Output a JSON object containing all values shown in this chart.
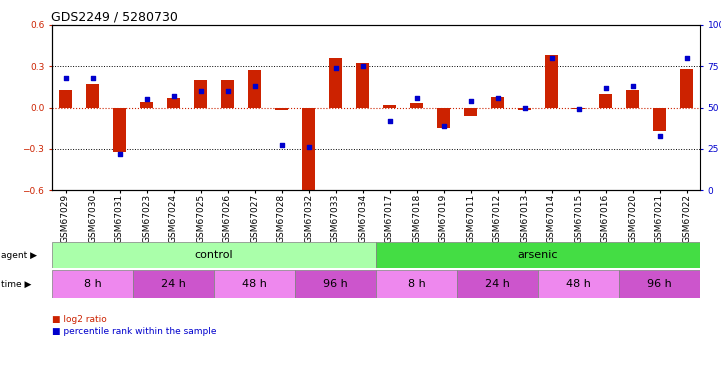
{
  "title": "GDS2249 / 5280730",
  "samples": [
    "GSM67029",
    "GSM67030",
    "GSM67031",
    "GSM67023",
    "GSM67024",
    "GSM67025",
    "GSM67026",
    "GSM67027",
    "GSM67028",
    "GSM67032",
    "GSM67033",
    "GSM67034",
    "GSM67017",
    "GSM67018",
    "GSM67019",
    "GSM67011",
    "GSM67012",
    "GSM67013",
    "GSM67014",
    "GSM67015",
    "GSM67016",
    "GSM67020",
    "GSM67021",
    "GSM67022"
  ],
  "log2ratio": [
    0.13,
    0.17,
    -0.32,
    0.04,
    0.07,
    0.2,
    0.2,
    0.27,
    -0.02,
    -0.6,
    0.36,
    0.32,
    0.02,
    0.03,
    -0.15,
    -0.06,
    0.08,
    -0.02,
    0.38,
    -0.01,
    0.1,
    0.13,
    -0.17,
    0.28
  ],
  "percentile": [
    68,
    68,
    22,
    55,
    57,
    60,
    60,
    63,
    27,
    26,
    74,
    75,
    42,
    56,
    39,
    54,
    56,
    50,
    80,
    49,
    62,
    63,
    33,
    80
  ],
  "agent_groups": [
    {
      "label": "control",
      "start": 0,
      "end": 11,
      "color": "#aaffaa"
    },
    {
      "label": "arsenic",
      "start": 12,
      "end": 23,
      "color": "#44dd44"
    }
  ],
  "time_groups": [
    {
      "label": "8 h",
      "start": 0,
      "end": 2,
      "color": "#ee88ee"
    },
    {
      "label": "24 h",
      "start": 3,
      "end": 5,
      "color": "#cc55cc"
    },
    {
      "label": "48 h",
      "start": 6,
      "end": 8,
      "color": "#ee88ee"
    },
    {
      "label": "96 h",
      "start": 9,
      "end": 11,
      "color": "#cc55cc"
    },
    {
      "label": "8 h",
      "start": 12,
      "end": 14,
      "color": "#ee88ee"
    },
    {
      "label": "24 h",
      "start": 15,
      "end": 17,
      "color": "#cc55cc"
    },
    {
      "label": "48 h",
      "start": 18,
      "end": 20,
      "color": "#ee88ee"
    },
    {
      "label": "96 h",
      "start": 21,
      "end": 23,
      "color": "#cc55cc"
    }
  ],
  "bar_color": "#cc2200",
  "dot_color": "#0000cc",
  "ylim_left": [
    -0.6,
    0.6
  ],
  "ylim_right": [
    0,
    100
  ],
  "yticks_left": [
    -0.6,
    -0.3,
    0.0,
    0.3,
    0.6
  ],
  "yticks_right": [
    0,
    25,
    50,
    75,
    100
  ],
  "hlines": [
    -0.3,
    0.3
  ],
  "background_color": "#ffffff",
  "title_fontsize": 9,
  "tick_fontsize": 6.5,
  "label_fontsize": 8,
  "bar_width": 0.5,
  "dot_size": 12
}
